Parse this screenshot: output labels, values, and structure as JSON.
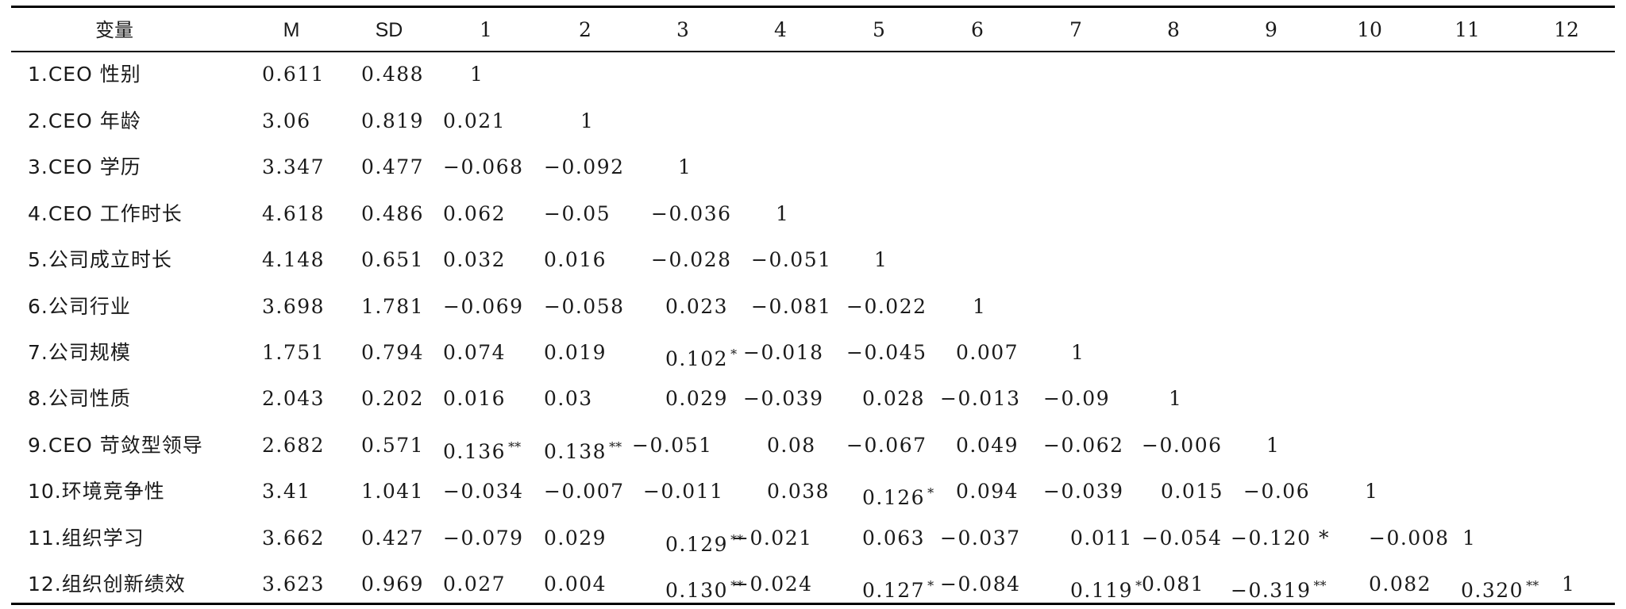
{
  "table": {
    "headers": [
      "变量",
      "M",
      "SD",
      "1",
      "2",
      "3",
      "4",
      "5",
      "6",
      "7",
      "8",
      "9",
      "10",
      "11",
      "12"
    ],
    "rows": [
      {
        "label": "1.CEO 性别",
        "m": "0.611",
        "sd": "0.488",
        "cells": [
          {
            "v": "1",
            "sig": ""
          }
        ]
      },
      {
        "label": "2.CEO 年龄",
        "m": "3.06",
        "sd": "0.819",
        "cells": [
          {
            "v": "0.021",
            "sig": ""
          },
          {
            "v": "1",
            "sig": ""
          }
        ]
      },
      {
        "label": "3.CEO 学历",
        "m": "3.347",
        "sd": "0.477",
        "cells": [
          {
            "v": "−0.068",
            "sig": ""
          },
          {
            "v": "−0.092",
            "sig": ""
          },
          {
            "v": "1",
            "sig": ""
          }
        ]
      },
      {
        "label": "4.CEO 工作时长",
        "m": "4.618",
        "sd": "0.486",
        "cells": [
          {
            "v": "0.062",
            "sig": ""
          },
          {
            "v": "−0.05",
            "sig": ""
          },
          {
            "v": "−0.036",
            "sig": ""
          },
          {
            "v": "1",
            "sig": ""
          }
        ]
      },
      {
        "label": "5.公司成立时长",
        "m": "4.148",
        "sd": "0.651",
        "cells": [
          {
            "v": "0.032",
            "sig": ""
          },
          {
            "v": "0.016",
            "sig": ""
          },
          {
            "v": "−0.028",
            "sig": ""
          },
          {
            "v": "−0.051",
            "sig": ""
          },
          {
            "v": "1",
            "sig": ""
          }
        ]
      },
      {
        "label": "6.公司行业",
        "m": "3.698",
        "sd": "1.781",
        "cells": [
          {
            "v": "−0.069",
            "sig": ""
          },
          {
            "v": "−0.058",
            "sig": ""
          },
          {
            "v": "0.023",
            "sig": ""
          },
          {
            "v": "−0.081",
            "sig": ""
          },
          {
            "v": "−0.022",
            "sig": ""
          },
          {
            "v": "1",
            "sig": ""
          }
        ]
      },
      {
        "label": "7.公司规模",
        "m": "1.751",
        "sd": "0.794",
        "cells": [
          {
            "v": "0.074",
            "sig": ""
          },
          {
            "v": "0.019",
            "sig": ""
          },
          {
            "v": "0.102",
            "sig": "*"
          },
          {
            "v": "−0.018",
            "sig": ""
          },
          {
            "v": "−0.045",
            "sig": ""
          },
          {
            "v": "0.007",
            "sig": ""
          },
          {
            "v": "1",
            "sig": ""
          }
        ]
      },
      {
        "label": "8.公司性质",
        "m": "2.043",
        "sd": "0.202",
        "cells": [
          {
            "v": "0.016",
            "sig": ""
          },
          {
            "v": "0.03",
            "sig": ""
          },
          {
            "v": "0.029",
            "sig": ""
          },
          {
            "v": "−0.039",
            "sig": ""
          },
          {
            "v": "0.028",
            "sig": ""
          },
          {
            "v": "−0.013",
            "sig": ""
          },
          {
            "v": "−0.09",
            "sig": ""
          },
          {
            "v": "1",
            "sig": ""
          }
        ]
      },
      {
        "label": "9.CEO 苛敛型领导",
        "m": "2.682",
        "sd": "0.571",
        "cells": [
          {
            "v": "0.136",
            "sig": "**"
          },
          {
            "v": "0.138",
            "sig": "**"
          },
          {
            "v": "−0.051",
            "sig": ""
          },
          {
            "v": "0.08",
            "sig": ""
          },
          {
            "v": "−0.067",
            "sig": ""
          },
          {
            "v": "0.049",
            "sig": ""
          },
          {
            "v": "−0.062",
            "sig": ""
          },
          {
            "v": "−0.006",
            "sig": ""
          },
          {
            "v": "1",
            "sig": ""
          }
        ]
      },
      {
        "label": "10.环境竞争性",
        "m": "3.41",
        "sd": "1.041",
        "cells": [
          {
            "v": "−0.034",
            "sig": ""
          },
          {
            "v": "−0.007",
            "sig": ""
          },
          {
            "v": "−0.011",
            "sig": ""
          },
          {
            "v": "0.038",
            "sig": ""
          },
          {
            "v": "0.126",
            "sig": "*"
          },
          {
            "v": "0.094",
            "sig": ""
          },
          {
            "v": "−0.039",
            "sig": ""
          },
          {
            "v": "0.015",
            "sig": ""
          },
          {
            "v": "−0.06",
            "sig": ""
          },
          {
            "v": "1",
            "sig": ""
          }
        ]
      },
      {
        "label": "11.组织学习",
        "m": "3.662",
        "sd": "0.427",
        "cells": [
          {
            "v": "−0.079",
            "sig": ""
          },
          {
            "v": "0.029",
            "sig": ""
          },
          {
            "v": "0.129",
            "sig": "**"
          },
          {
            "v": "−0.021",
            "sig": ""
          },
          {
            "v": "0.063",
            "sig": ""
          },
          {
            "v": "−0.037",
            "sig": ""
          },
          {
            "v": "0.011",
            "sig": ""
          },
          {
            "v": "−0.054",
            "sig": ""
          },
          {
            "v": "−0.120 *",
            "sig": ""
          },
          {
            "v": "−0.008",
            "sig": ""
          },
          {
            "v": "1",
            "sig": ""
          }
        ]
      },
      {
        "label": "12.组织创新绩效",
        "m": "3.623",
        "sd": "0.969",
        "cells": [
          {
            "v": "0.027",
            "sig": ""
          },
          {
            "v": "0.004",
            "sig": ""
          },
          {
            "v": "0.130",
            "sig": "**"
          },
          {
            "v": "−0.024",
            "sig": ""
          },
          {
            "v": "0.127",
            "sig": "*"
          },
          {
            "v": "−0.084",
            "sig": ""
          },
          {
            "v": "0.119",
            "sig": "*"
          },
          {
            "v": "0.081",
            "sig": ""
          },
          {
            "v": "−0.319",
            "sig": "**"
          },
          {
            "v": "0.082",
            "sig": ""
          },
          {
            "v": "0.320",
            "sig": "**"
          },
          {
            "v": "1",
            "sig": ""
          }
        ]
      }
    ]
  }
}
